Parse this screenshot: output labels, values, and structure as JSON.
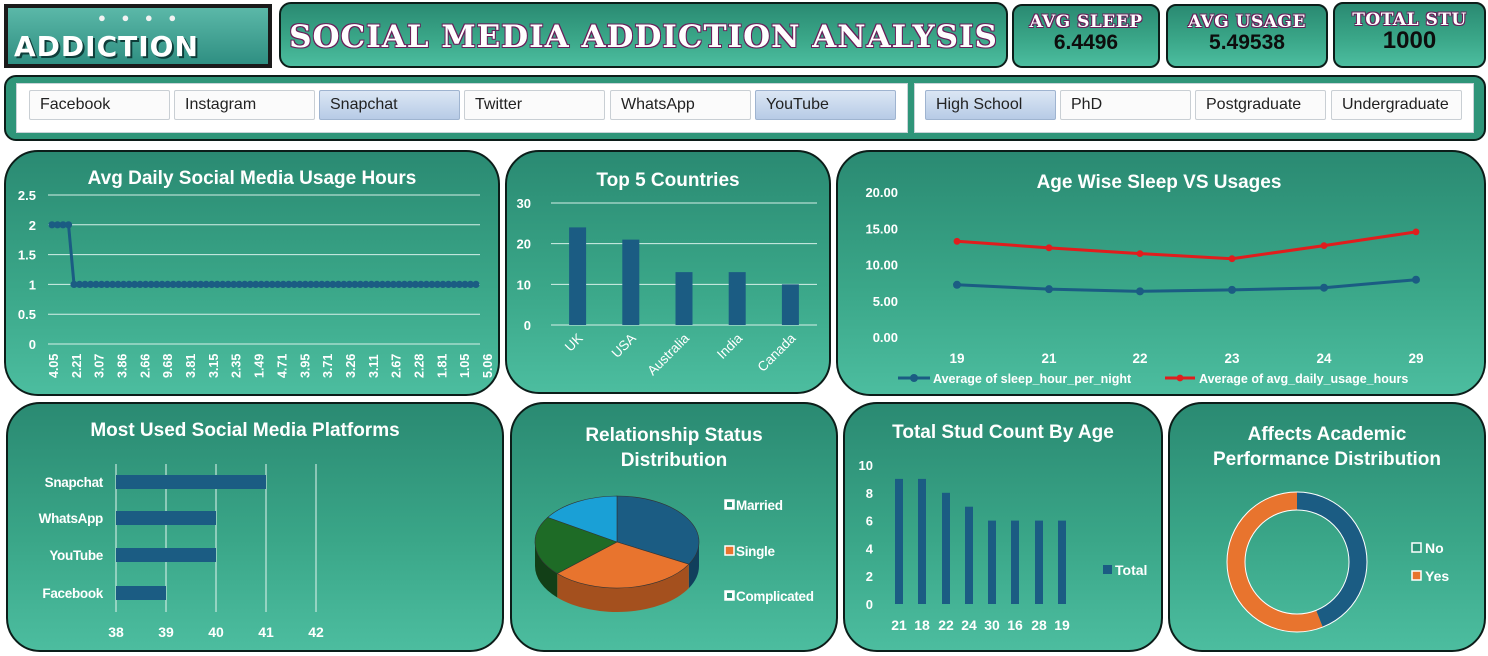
{
  "header": {
    "logo_text": "ADDICTION",
    "title": "SOCIAL MEDIA  ADDICTION ANALYSIS",
    "kpis": [
      {
        "label": "AVG SLEEP",
        "value": "6.4496"
      },
      {
        "label": "AVG  USAGE",
        "value": "5.49538"
      },
      {
        "label": "TOTAL STU",
        "value": "1000"
      }
    ]
  },
  "slicers": {
    "platforms": [
      {
        "label": "Facebook",
        "selected": false
      },
      {
        "label": "Instagram",
        "selected": false
      },
      {
        "label": "Snapchat",
        "selected": true
      },
      {
        "label": "Twitter",
        "selected": false
      },
      {
        "label": "WhatsApp",
        "selected": false
      },
      {
        "label": "YouTube",
        "selected": true
      }
    ],
    "education": [
      {
        "label": "High School",
        "selected": true
      },
      {
        "label": "PhD",
        "selected": false
      },
      {
        "label": "Postgraduate",
        "selected": false
      },
      {
        "label": "Undergraduate",
        "selected": false
      }
    ]
  },
  "colors": {
    "navy": "#1b5c83",
    "red": "#e01d1d",
    "orange": "#e8742e",
    "green": "#1e6b26",
    "cyan": "#1aa0d6"
  },
  "chart_data": [
    {
      "id": "usage",
      "type": "line",
      "title": "Avg Daily Social Media Usage Hours",
      "tick_labels": [
        "4.05",
        "2.21",
        "3.07",
        "3.86",
        "2.66",
        "9.68",
        "3.81",
        "3.15",
        "2.35",
        "1.49",
        "4.71",
        "3.95",
        "3.71",
        "3.26",
        "3.11",
        "2.67",
        "2.28",
        "1.81",
        "1.05",
        "5.06"
      ],
      "values": [
        2,
        2,
        2,
        2,
        1,
        1,
        1,
        1,
        1,
        1,
        1,
        1,
        1,
        1,
        1,
        1,
        1,
        1,
        1,
        1,
        1,
        1,
        1,
        1,
        1,
        1,
        1,
        1,
        1,
        1,
        1,
        1,
        1,
        1,
        1,
        1,
        1,
        1,
        1,
        1,
        1,
        1,
        1,
        1,
        1,
        1,
        1,
        1,
        1,
        1,
        1,
        1,
        1,
        1,
        1,
        1,
        1,
        1,
        1,
        1,
        1,
        1,
        1,
        1,
        1,
        1,
        1,
        1,
        1,
        1,
        1,
        1,
        1,
        1,
        1,
        1,
        1,
        1
      ],
      "ylim": [
        0,
        2.5
      ],
      "yticks": [
        "0",
        "0.5",
        "1",
        "1.5",
        "2",
        "2.5"
      ]
    },
    {
      "id": "countries",
      "type": "bar",
      "title": "Top 5 Countries",
      "categories": [
        "UK",
        "USA",
        "Australia",
        "India",
        "Canada"
      ],
      "values": [
        24,
        21,
        13,
        13,
        10
      ],
      "ylim": [
        0,
        30
      ],
      "yticks": [
        "0",
        "10",
        "20",
        "30"
      ]
    },
    {
      "id": "agesleep",
      "type": "line",
      "title": "Age Wise Sleep VS Usages",
      "categories": [
        "19",
        "21",
        "22",
        "23",
        "24",
        "29"
      ],
      "series": [
        {
          "name": "Average of sleep_hour_per_night",
          "values": [
            7.2,
            6.6,
            6.3,
            6.5,
            6.8,
            7.9
          ]
        },
        {
          "name": "Average of avg_daily_usage_hours",
          "values": [
            13.2,
            12.3,
            11.5,
            10.8,
            12.6,
            14.5
          ]
        }
      ],
      "ylim": [
        0,
        20
      ],
      "yticks": [
        "0.00",
        "5.00",
        "10.00",
        "15.00",
        "20.00"
      ]
    },
    {
      "id": "platforms",
      "type": "bar",
      "orientation": "horizontal",
      "title": "Most Used Social Media Platforms",
      "categories": [
        "Snapchat",
        "WhatsApp",
        "YouTube",
        "Facebook"
      ],
      "values": [
        41,
        40,
        40,
        39
      ],
      "xlim": [
        38,
        42
      ],
      "xticks": [
        "38",
        "39",
        "40",
        "41",
        "42"
      ]
    },
    {
      "id": "relationship",
      "type": "pie",
      "title_lines": [
        "Relationship Status",
        "Distribution"
      ],
      "legend": [
        "Married",
        "Single",
        "Complicated"
      ],
      "slices": [
        {
          "label": "Married",
          "value": 0.33
        },
        {
          "label": "Single",
          "value": 0.3
        },
        {
          "label": "Complicated",
          "value": 0.21
        },
        {
          "label": "",
          "value": 0.16
        }
      ]
    },
    {
      "id": "agecount",
      "type": "bar",
      "title": "Total Stud Count By Age",
      "categories": [
        "21",
        "18",
        "22",
        "24",
        "30",
        "16",
        "28",
        "19"
      ],
      "values": [
        9,
        9,
        8,
        7,
        6,
        6,
        6,
        6
      ],
      "ylim": [
        0,
        10
      ],
      "yticks": [
        "0",
        "2",
        "4",
        "6",
        "8",
        "10"
      ],
      "legend": "Total"
    },
    {
      "id": "academic",
      "type": "pie",
      "subtype": "donut",
      "title_lines": [
        "Affects Academic",
        "Performance Distribution"
      ],
      "legend": [
        "No",
        "Yes"
      ],
      "values": [
        0.44,
        0.56
      ]
    }
  ]
}
